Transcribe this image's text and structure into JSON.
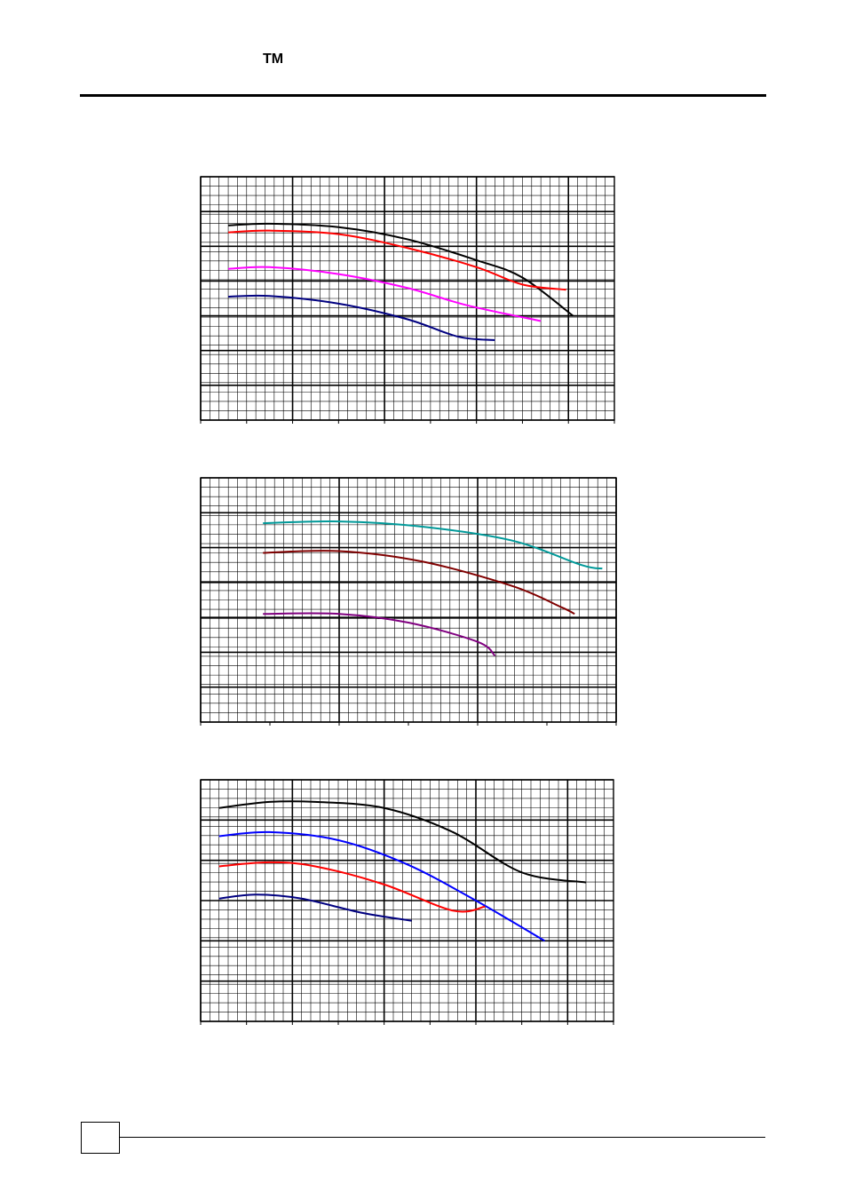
{
  "header": {
    "trademark": "TM"
  },
  "chart_data": [
    {
      "type": "line",
      "x_range": [
        0,
        9
      ],
      "y_range": [
        0,
        7
      ],
      "major_x": 2,
      "major_y": 1,
      "grid": true,
      "series": [
        {
          "color": "#000000",
          "points": [
            [
              0.6,
              5.6
            ],
            [
              1.5,
              5.65
            ],
            [
              3.0,
              5.55
            ],
            [
              4.5,
              5.2
            ],
            [
              6.0,
              4.6
            ],
            [
              7.0,
              4.1
            ],
            [
              8.1,
              3.0
            ]
          ]
        },
        {
          "color": "#ff0000",
          "points": [
            [
              0.6,
              5.4
            ],
            [
              1.5,
              5.45
            ],
            [
              3.0,
              5.35
            ],
            [
              4.5,
              4.95
            ],
            [
              6.0,
              4.4
            ],
            [
              7.0,
              3.9
            ],
            [
              7.95,
              3.75
            ]
          ]
        },
        {
          "color": "#ff00ff",
          "points": [
            [
              0.6,
              4.35
            ],
            [
              1.5,
              4.4
            ],
            [
              3.0,
              4.2
            ],
            [
              4.5,
              3.8
            ],
            [
              5.8,
              3.3
            ],
            [
              7.4,
              2.85
            ]
          ]
        },
        {
          "color": "#000080",
          "points": [
            [
              0.6,
              3.55
            ],
            [
              1.5,
              3.57
            ],
            [
              3.0,
              3.35
            ],
            [
              4.5,
              2.9
            ],
            [
              5.6,
              2.4
            ],
            [
              6.4,
              2.3
            ]
          ]
        }
      ]
    },
    {
      "type": "line",
      "x_range": [
        0,
        6
      ],
      "y_range": [
        0,
        7
      ],
      "major_x": 2,
      "major_y": 1,
      "grid": true,
      "series": [
        {
          "color": "#009999",
          "points": [
            [
              0.9,
              5.7
            ],
            [
              2.0,
              5.75
            ],
            [
              3.2,
              5.6
            ],
            [
              4.5,
              5.2
            ],
            [
              5.5,
              4.5
            ],
            [
              5.8,
              4.4
            ]
          ]
        },
        {
          "color": "#800000",
          "points": [
            [
              0.9,
              4.85
            ],
            [
              2.0,
              4.9
            ],
            [
              3.2,
              4.6
            ],
            [
              4.5,
              3.9
            ],
            [
              5.2,
              3.3
            ],
            [
              5.4,
              3.1
            ]
          ]
        },
        {
          "color": "#800080",
          "points": [
            [
              0.9,
              3.1
            ],
            [
              2.0,
              3.1
            ],
            [
              3.0,
              2.85
            ],
            [
              4.0,
              2.3
            ],
            [
              4.25,
              1.9
            ]
          ]
        }
      ]
    },
    {
      "type": "line",
      "x_range": [
        0,
        9
      ],
      "y_range": [
        0,
        6
      ],
      "major_x": 2,
      "major_y": 1,
      "grid": true,
      "series": [
        {
          "color": "#000000",
          "points": [
            [
              0.4,
              5.3
            ],
            [
              1.5,
              5.45
            ],
            [
              2.5,
              5.45
            ],
            [
              4.0,
              5.3
            ],
            [
              5.5,
              4.7
            ],
            [
              7.0,
              3.7
            ],
            [
              8.4,
              3.45
            ]
          ]
        },
        {
          "color": "#0000ff",
          "points": [
            [
              0.4,
              4.6
            ],
            [
              1.5,
              4.7
            ],
            [
              3.0,
              4.5
            ],
            [
              4.5,
              3.9
            ],
            [
              6.0,
              3.0
            ],
            [
              7.5,
              2.0
            ]
          ]
        },
        {
          "color": "#ff0000",
          "points": [
            [
              0.4,
              3.85
            ],
            [
              1.5,
              3.95
            ],
            [
              2.5,
              3.85
            ],
            [
              4.0,
              3.4
            ],
            [
              5.5,
              2.75
            ],
            [
              6.2,
              2.85
            ]
          ]
        },
        {
          "color": "#000080",
          "points": [
            [
              0.4,
              3.05
            ],
            [
              1.2,
              3.15
            ],
            [
              2.2,
              3.05
            ],
            [
              3.5,
              2.7
            ],
            [
              4.6,
              2.5
            ]
          ]
        }
      ]
    }
  ]
}
